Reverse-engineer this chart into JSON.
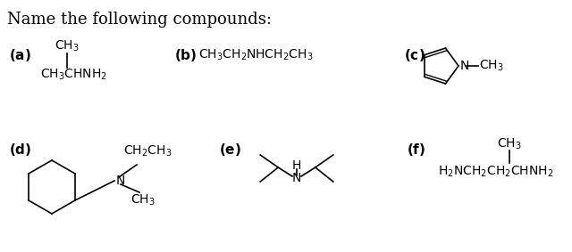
{
  "title": "Name the following compounds:",
  "bg_color": "#ffffff",
  "text_color": "#000000",
  "font_size_title": 13,
  "font_size_label": 11,
  "font_size_chem": 10,
  "fig_width": 6.4,
  "fig_height": 2.83,
  "dpi": 100
}
